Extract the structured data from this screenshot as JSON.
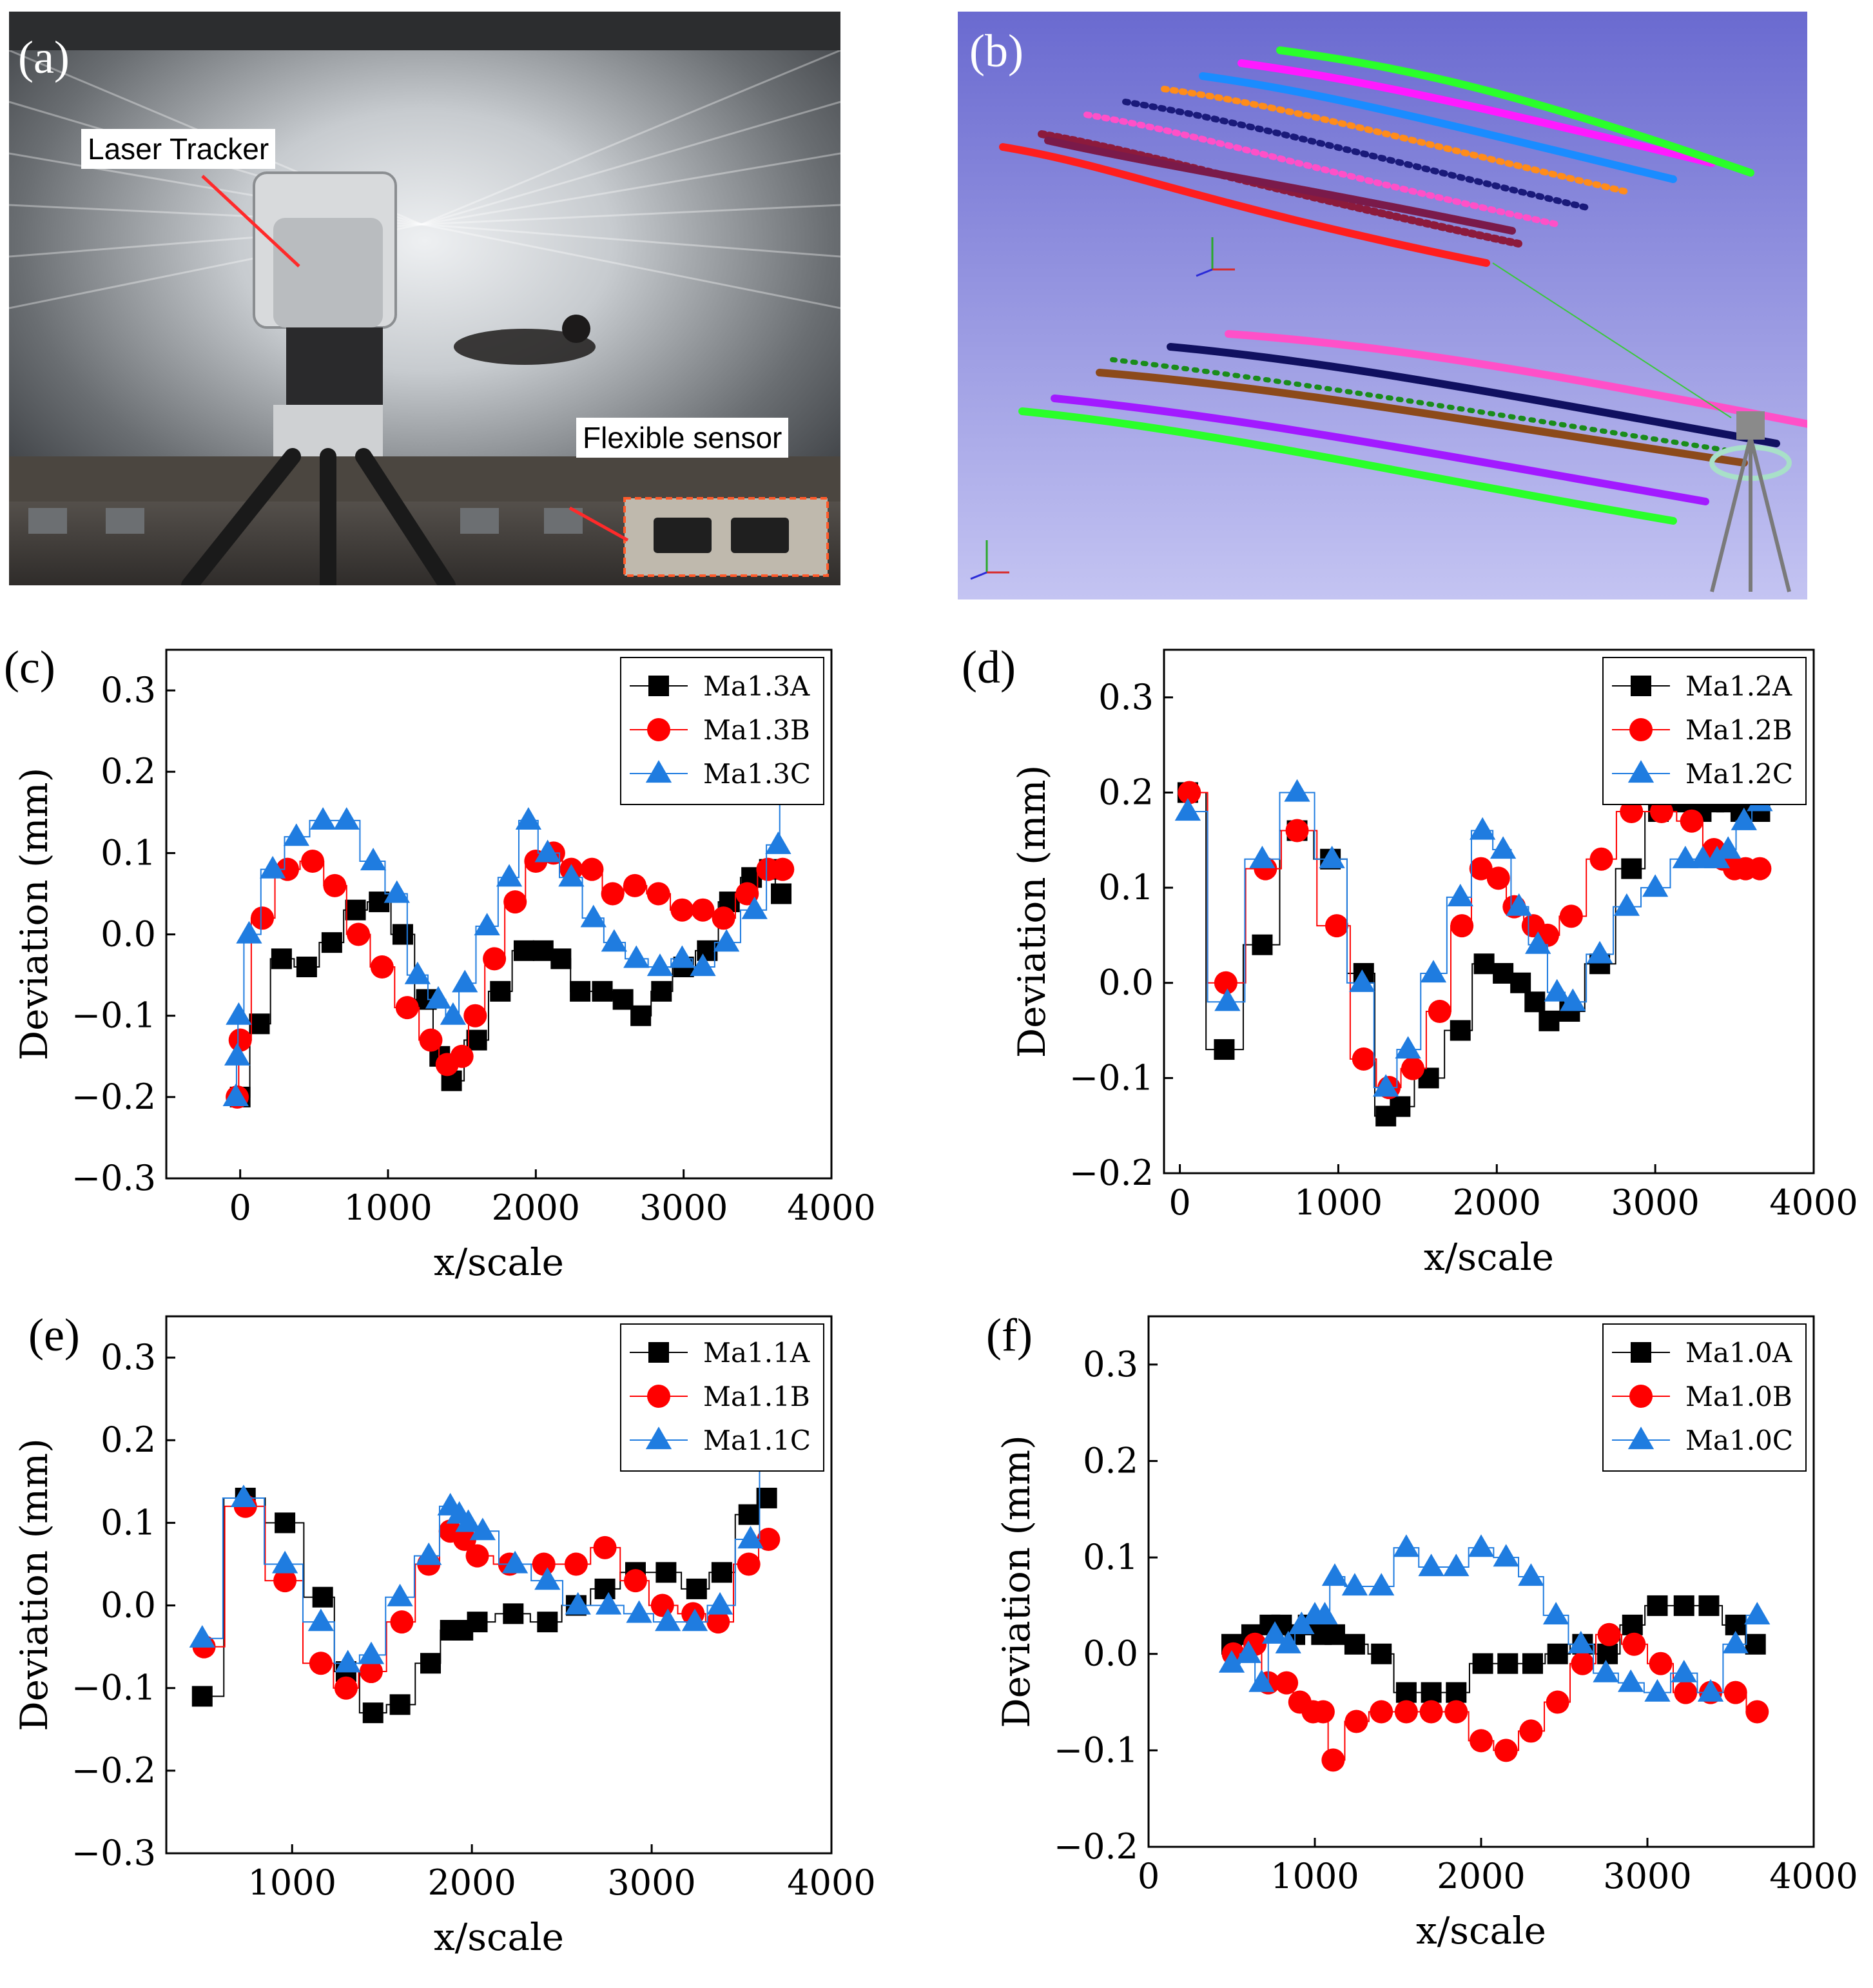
{
  "photo_a": {
    "letter": "(a)",
    "laser_label": "Laser Tracker",
    "sensor_label": "Flexible sensor"
  },
  "photo_b": {
    "letter": "(b)"
  },
  "colors": {
    "series_a": "#000000",
    "series_b": "#ff0000",
    "series_c": "#1f7ce0",
    "photo_b_bg": "#7d7dd0"
  },
  "chart_data": [
    {
      "type": "line",
      "panel": "(c)",
      "xlabel": "x/scale",
      "ylabel": "Deviation (mm)",
      "xlim": [
        -500,
        4000
      ],
      "ylim": [
        -0.3,
        0.35
      ],
      "xticks": [
        0,
        1000,
        2000,
        3000,
        4000
      ],
      "xtick_labels": [
        "0",
        "1000",
        "2000",
        "3000",
        "4000"
      ],
      "yticks": [
        -0.3,
        -0.2,
        -0.1,
        0.0,
        0.1,
        0.2,
        0.3
      ],
      "ytick_labels": [
        "−0.3",
        "−0.2",
        "−0.1",
        "0.0",
        "0.1",
        "0.2",
        "0.3"
      ],
      "series": [
        {
          "name": "Ma1.3A",
          "marker": "square",
          "x": [
            0,
            130,
            280,
            450,
            620,
            780,
            940,
            1100,
            1260,
            1350,
            1430,
            1600,
            1760,
            1920,
            2050,
            2170,
            2300,
            2450,
            2590,
            2710,
            2850,
            3000,
            3160,
            3310,
            3460,
            3580,
            3660
          ],
          "y": [
            -0.2,
            -0.11,
            -0.03,
            -0.04,
            -0.01,
            0.03,
            0.04,
            0.0,
            -0.08,
            -0.15,
            -0.18,
            -0.13,
            -0.07,
            -0.02,
            -0.02,
            -0.03,
            -0.07,
            -0.07,
            -0.08,
            -0.1,
            -0.07,
            -0.04,
            -0.02,
            0.04,
            0.07,
            0.08,
            0.05
          ]
        },
        {
          "name": "Ma1.3B",
          "marker": "circle",
          "x": [
            -20,
            0,
            150,
            320,
            490,
            640,
            800,
            960,
            1130,
            1290,
            1400,
            1500,
            1590,
            1720,
            1860,
            2000,
            2120,
            2240,
            2380,
            2520,
            2670,
            2830,
            2990,
            3130,
            3270,
            3430,
            3570,
            3670
          ],
          "y": [
            -0.2,
            -0.13,
            0.02,
            0.08,
            0.09,
            0.06,
            0.0,
            -0.04,
            -0.09,
            -0.13,
            -0.16,
            -0.15,
            -0.1,
            -0.03,
            0.04,
            0.09,
            0.1,
            0.08,
            0.08,
            0.05,
            0.06,
            0.05,
            0.03,
            0.03,
            0.02,
            0.05,
            0.08,
            0.08
          ]
        },
        {
          "name": "Ma1.3C",
          "marker": "triangle",
          "x": [
            -30,
            -20,
            -10,
            60,
            220,
            380,
            560,
            720,
            900,
            1060,
            1200,
            1340,
            1440,
            1520,
            1670,
            1820,
            1950,
            2080,
            2240,
            2390,
            2530,
            2680,
            2840,
            2990,
            3130,
            3290,
            3480,
            3640,
            3660
          ],
          "y": [
            -0.2,
            -0.15,
            -0.1,
            0.0,
            0.08,
            0.12,
            0.14,
            0.14,
            0.09,
            0.05,
            -0.05,
            -0.08,
            -0.1,
            -0.06,
            0.01,
            0.07,
            0.14,
            0.1,
            0.07,
            0.02,
            -0.01,
            -0.03,
            -0.04,
            -0.03,
            -0.04,
            -0.01,
            0.03,
            0.11,
            0.18
          ]
        }
      ],
      "legend": "top-right"
    },
    {
      "type": "line",
      "panel": "(d)",
      "xlabel": "x/scale",
      "ylabel": "Deviation (mm)",
      "xlim": [
        -100,
        4000
      ],
      "ylim": [
        -0.2,
        0.35
      ],
      "xticks": [
        0,
        1000,
        2000,
        3000,
        4000
      ],
      "xtick_labels": [
        "0",
        "1000",
        "2000",
        "3000",
        "4000"
      ],
      "yticks": [
        -0.2,
        -0.1,
        0.0,
        0.1,
        0.2,
        0.3
      ],
      "ytick_labels": [
        "−0.2",
        "−0.1",
        "0.0",
        "0.1",
        "0.2",
        "0.3"
      ],
      "series": [
        {
          "name": "Ma1.2A",
          "marker": "square",
          "x": [
            50,
            280,
            520,
            740,
            950,
            1160,
            1300,
            1390,
            1570,
            1770,
            1920,
            2040,
            2150,
            2240,
            2330,
            2460,
            2650,
            2850,
            3020,
            3160,
            3290,
            3370,
            3450,
            3540,
            3660
          ],
          "y": [
            0.2,
            -0.07,
            0.04,
            0.16,
            0.13,
            0.01,
            -0.14,
            -0.13,
            -0.1,
            -0.05,
            0.02,
            0.01,
            0.0,
            -0.02,
            -0.04,
            -0.03,
            0.02,
            0.12,
            0.18,
            0.19,
            0.18,
            0.19,
            0.19,
            0.18,
            0.18
          ]
        },
        {
          "name": "Ma1.2B",
          "marker": "circle",
          "x": [
            60,
            290,
            540,
            740,
            990,
            1160,
            1320,
            1470,
            1640,
            1780,
            1900,
            2010,
            2110,
            2230,
            2320,
            2470,
            2660,
            2850,
            3040,
            3230,
            3370,
            3430,
            3500,
            3570,
            3660
          ],
          "y": [
            0.2,
            0.0,
            0.12,
            0.16,
            0.06,
            -0.08,
            -0.11,
            -0.09,
            -0.03,
            0.06,
            0.12,
            0.11,
            0.08,
            0.06,
            0.05,
            0.07,
            0.13,
            0.18,
            0.18,
            0.17,
            0.14,
            0.13,
            0.12,
            0.12,
            0.12
          ]
        },
        {
          "name": "Ma1.2C",
          "marker": "triangle",
          "x": [
            50,
            300,
            520,
            740,
            960,
            1150,
            1300,
            1440,
            1600,
            1770,
            1910,
            2040,
            2140,
            2260,
            2380,
            2480,
            2650,
            2820,
            3000,
            3190,
            3300,
            3390,
            3460,
            3560,
            3660
          ],
          "y": [
            0.18,
            -0.02,
            0.13,
            0.2,
            0.13,
            0.0,
            -0.11,
            -0.07,
            0.01,
            0.09,
            0.16,
            0.14,
            0.08,
            0.04,
            -0.01,
            -0.02,
            0.03,
            0.08,
            0.1,
            0.13,
            0.13,
            0.13,
            0.14,
            0.17,
            0.19
          ]
        }
      ],
      "legend": "top-right"
    },
    {
      "type": "line",
      "panel": "(e)",
      "xlabel": "x/scale",
      "ylabel": "Deviation (mm)",
      "xlim": [
        300,
        4000
      ],
      "ylim": [
        -0.3,
        0.35
      ],
      "xticks": [
        1000,
        2000,
        3000,
        4000
      ],
      "xtick_labels": [
        "1000",
        "2000",
        "3000",
        "4000"
      ],
      "yticks": [
        -0.3,
        -0.2,
        -0.1,
        0.0,
        0.1,
        0.2,
        0.3
      ],
      "ytick_labels": [
        "−0.3",
        "−0.2",
        "−0.1",
        "0.0",
        "0.1",
        "0.2",
        "0.3"
      ],
      "series": [
        {
          "name": "Ma1.1A",
          "marker": "square",
          "x": [
            500,
            740,
            960,
            1170,
            1300,
            1450,
            1600,
            1770,
            1880,
            1950,
            2030,
            2230,
            2420,
            2580,
            2740,
            2910,
            3080,
            3250,
            3390,
            3540,
            3640
          ],
          "y": [
            -0.11,
            0.13,
            0.1,
            0.01,
            -0.08,
            -0.13,
            -0.12,
            -0.07,
            -0.03,
            -0.03,
            -0.02,
            -0.01,
            -0.02,
            0.0,
            0.02,
            0.04,
            0.04,
            0.02,
            0.04,
            0.11,
            0.13
          ]
        },
        {
          "name": "Ma1.1B",
          "marker": "circle",
          "x": [
            510,
            740,
            960,
            1160,
            1300,
            1440,
            1610,
            1760,
            1880,
            1960,
            2030,
            2210,
            2400,
            2580,
            2740,
            2910,
            3060,
            3230,
            3370,
            3540,
            3650
          ],
          "y": [
            -0.05,
            0.12,
            0.03,
            -0.07,
            -0.1,
            -0.08,
            -0.02,
            0.05,
            0.09,
            0.08,
            0.06,
            0.05,
            0.05,
            0.05,
            0.07,
            0.03,
            0.0,
            -0.01,
            -0.02,
            0.05,
            0.08
          ]
        },
        {
          "name": "Ma1.1C",
          "marker": "triangle",
          "x": [
            500,
            730,
            960,
            1160,
            1310,
            1440,
            1600,
            1760,
            1880,
            1930,
            1980,
            2060,
            2240,
            2420,
            2590,
            2760,
            2930,
            3090,
            3240,
            3380,
            3550,
            3650
          ],
          "y": [
            -0.04,
            0.13,
            0.05,
            -0.02,
            -0.07,
            -0.06,
            0.01,
            0.06,
            0.12,
            0.11,
            0.1,
            0.09,
            0.05,
            0.03,
            0.0,
            0.0,
            -0.01,
            -0.02,
            -0.02,
            0.0,
            0.08,
            0.18
          ]
        }
      ],
      "legend": "top-right"
    },
    {
      "type": "line",
      "panel": "(f)",
      "xlabel": "x/scale",
      "ylabel": "Deviation (mm)",
      "xlim": [
        0,
        4000
      ],
      "ylim": [
        -0.2,
        0.35
      ],
      "xticks": [
        0,
        1000,
        2000,
        3000,
        4000
      ],
      "xtick_labels": [
        "0",
        "1000",
        "2000",
        "3000",
        "4000"
      ],
      "yticks": [
        -0.2,
        -0.1,
        0.0,
        0.1,
        0.2,
        0.3
      ],
      "ytick_labels": [
        "−0.2",
        "−0.1",
        "0.0",
        "0.1",
        "0.2",
        "0.3"
      ],
      "series": [
        {
          "name": "Ma1.0A",
          "marker": "square",
          "x": [
            500,
            620,
            730,
            800,
            880,
            960,
            1040,
            1120,
            1240,
            1400,
            1550,
            1700,
            1850,
            2010,
            2160,
            2310,
            2460,
            2610,
            2760,
            2910,
            3060,
            3220,
            3370,
            3530,
            3650
          ],
          "y": [
            0.01,
            0.02,
            0.03,
            0.03,
            0.02,
            0.03,
            0.02,
            0.02,
            0.01,
            0.0,
            -0.04,
            -0.04,
            -0.04,
            -0.01,
            -0.01,
            -0.01,
            0.0,
            0.01,
            0.0,
            0.03,
            0.05,
            0.05,
            0.05,
            0.03,
            0.01
          ]
        },
        {
          "name": "Ma1.0B",
          "marker": "circle",
          "x": [
            510,
            640,
            720,
            830,
            910,
            990,
            1050,
            1110,
            1250,
            1400,
            1550,
            1700,
            1850,
            2000,
            2150,
            2300,
            2460,
            2610,
            2770,
            2920,
            3080,
            3230,
            3380,
            3530,
            3660
          ],
          "y": [
            0.0,
            0.01,
            -0.03,
            -0.03,
            -0.05,
            -0.06,
            -0.06,
            -0.11,
            -0.07,
            -0.06,
            -0.06,
            -0.06,
            -0.06,
            -0.09,
            -0.1,
            -0.08,
            -0.05,
            -0.01,
            0.02,
            0.01,
            -0.01,
            -0.04,
            -0.04,
            -0.04,
            -0.06
          ]
        },
        {
          "name": "Ma1.0C",
          "marker": "triangle",
          "x": [
            500,
            600,
            680,
            760,
            840,
            920,
            1000,
            1060,
            1120,
            1240,
            1400,
            1550,
            1700,
            1850,
            2000,
            2150,
            2300,
            2450,
            2600,
            2750,
            2900,
            3060,
            3220,
            3380,
            3530,
            3660
          ],
          "y": [
            -0.01,
            0.0,
            -0.03,
            0.02,
            0.01,
            0.03,
            0.04,
            0.04,
            0.08,
            0.07,
            0.07,
            0.11,
            0.09,
            0.09,
            0.11,
            0.1,
            0.08,
            0.04,
            0.01,
            -0.02,
            -0.03,
            -0.04,
            -0.02,
            -0.04,
            0.01,
            0.04
          ]
        }
      ],
      "legend": "top-right"
    }
  ]
}
